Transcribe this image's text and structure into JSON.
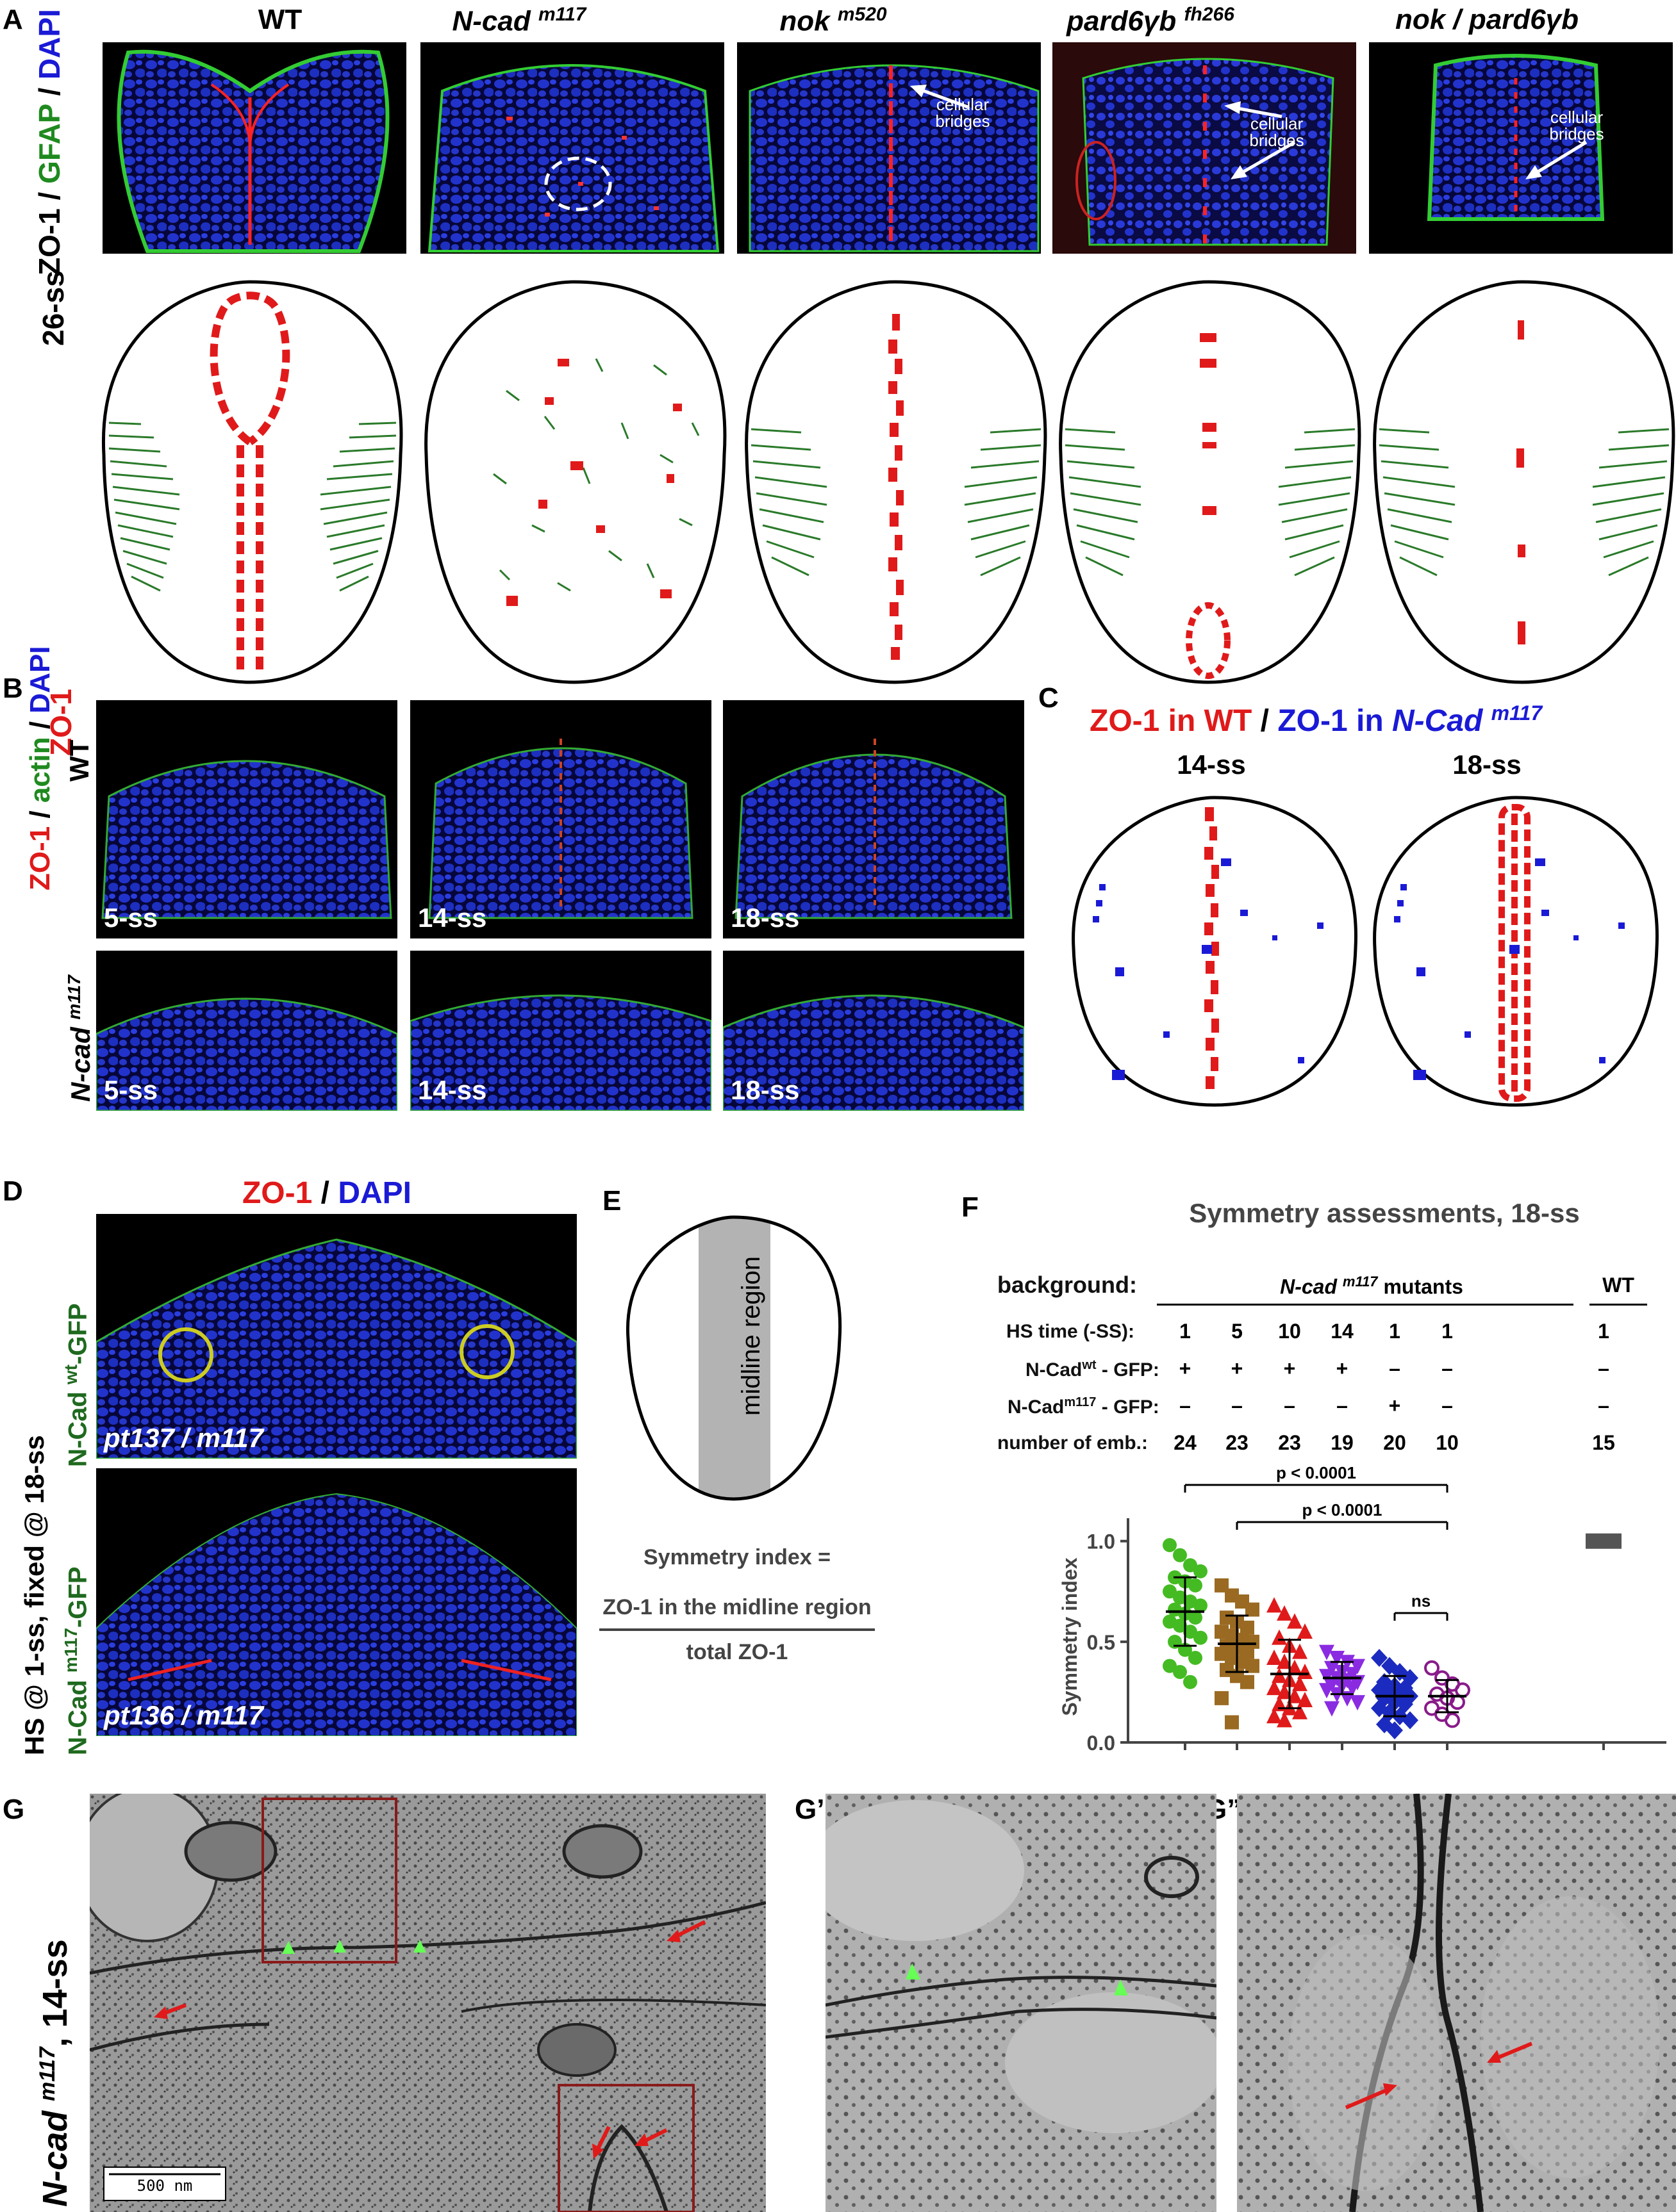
{
  "panels": {
    "A": "A",
    "B": "B",
    "C": "C",
    "D": "D",
    "E": "E",
    "F": "F",
    "G": "G",
    "G1": "G’",
    "G2": "G”"
  },
  "panel_a": {
    "columns": [
      "WT",
      "N-cad m117",
      "nok m520",
      "pard6γb fh266",
      "nok / pard6γb"
    ],
    "col_base": [
      "WT",
      "N-cad",
      "nok",
      "pard6γb",
      "nok / pard6γb"
    ],
    "col_sup": [
      "",
      "m117",
      "m520",
      "fh266",
      ""
    ],
    "side_stage": "26-ss",
    "side_zo1": "ZO-1",
    "side_gfap": "GFAP",
    "side_dapi": "DAPI",
    "sep": " / ",
    "annotation": "cellular bridges"
  },
  "panel_b": {
    "side_zo1": "ZO-1",
    "side_actin": "actin",
    "side_dapi": "DAPI",
    "row_wt": "WT",
    "row_ncad": "N-cad",
    "row_ncad_sup": "m117",
    "stages": [
      "5-ss",
      "14-ss",
      "18-ss"
    ]
  },
  "panel_c": {
    "title_wt": "ZO-1 in WT",
    "title_ncad": "ZO-1 in",
    "title_ncad_gene": "N-Cad",
    "title_ncad_sup": "m117",
    "stages": [
      "14-ss",
      "18-ss"
    ]
  },
  "panel_d": {
    "title_zo1": "ZO-1",
    "title_dapi": "DAPI",
    "side": "HS @ 1-ss, fixed @ 18-ss",
    "construct_wt": "N-Cad",
    "construct_wt_sup": "wt",
    "construct_mut": "N-Cad",
    "construct_mut_sup": "m117",
    "gfp": "-GFP",
    "geno_top": "pt137 / m117",
    "geno_bottom": "pt136 / m117"
  },
  "panel_e": {
    "region": "midline region",
    "formula_title": "Symmetry index =",
    "numerator": "ZO-1 in the midline region",
    "denominator": "total ZO-1"
  },
  "panel_f": {
    "title": "Symmetry assessments, 18-ss",
    "rows": {
      "background": "background:",
      "hs_time": "HS time (-SS):",
      "ncad_wt": "N-Cad",
      "ncad_wt_sup": "wt",
      "ncad_m117": "N-Cad",
      "ncad_m117_sup": "m117",
      "gfp": " - GFP:",
      "emb": "number of emb.:"
    },
    "background_mutants": "N-cad",
    "background_mutants_sup": "m117",
    "background_mutants_tail": "mutants",
    "background_wt": "WT",
    "hs": [
      "1",
      "5",
      "10",
      "14",
      "1",
      "1",
      "1"
    ],
    "wt_gfp": [
      "+",
      "+",
      "+",
      "+",
      "–",
      "–",
      "–"
    ],
    "mut_gfp": [
      "–",
      "–",
      "–",
      "–",
      "+",
      "–",
      "–"
    ],
    "emb": [
      "24",
      "23",
      "23",
      "19",
      "20",
      "10",
      "15"
    ],
    "sig1": "p < 0.0001",
    "sig2": "p < 0.0001",
    "sig3": "ns"
  },
  "chart_data": {
    "type": "scatter",
    "ylabel": "Symmetry index",
    "ylim": [
      0,
      1.05
    ],
    "yticks": [
      "0.0",
      "0.5",
      "1.0"
    ],
    "groups": [
      {
        "n": 24,
        "mean": 0.65,
        "sd": 0.17,
        "color": "#44bb22",
        "marker": "circle",
        "values": [
          0.98,
          0.93,
          0.88,
          0.85,
          0.82,
          0.8,
          0.78,
          0.75,
          0.72,
          0.7,
          0.68,
          0.66,
          0.64,
          0.62,
          0.6,
          0.58,
          0.55,
          0.52,
          0.5,
          0.46,
          0.42,
          0.38,
          0.35,
          0.3
        ]
      },
      {
        "n": 23,
        "mean": 0.49,
        "sd": 0.14,
        "color": "#9a6a22",
        "marker": "square",
        "values": [
          0.78,
          0.73,
          0.7,
          0.66,
          0.62,
          0.6,
          0.57,
          0.55,
          0.53,
          0.51,
          0.5,
          0.48,
          0.47,
          0.45,
          0.44,
          0.42,
          0.4,
          0.38,
          0.36,
          0.33,
          0.3,
          0.22,
          0.1
        ]
      },
      {
        "n": 23,
        "mean": 0.34,
        "sd": 0.17,
        "color": "#e01a1a",
        "marker": "triangle",
        "values": [
          0.68,
          0.64,
          0.6,
          0.55,
          0.52,
          0.48,
          0.45,
          0.42,
          0.4,
          0.37,
          0.35,
          0.33,
          0.31,
          0.29,
          0.27,
          0.25,
          0.23,
          0.21,
          0.19,
          0.17,
          0.15,
          0.13,
          0.11
        ]
      },
      {
        "n": 19,
        "mean": 0.32,
        "sd": 0.08,
        "color": "#8a2be2",
        "marker": "triangle-down",
        "values": [
          0.45,
          0.42,
          0.4,
          0.38,
          0.37,
          0.35,
          0.34,
          0.33,
          0.32,
          0.31,
          0.3,
          0.29,
          0.28,
          0.27,
          0.26,
          0.24,
          0.22,
          0.2,
          0.17
        ]
      },
      {
        "n": 20,
        "mean": 0.23,
        "sd": 0.1,
        "color": "#1c2bbf",
        "marker": "diamond",
        "values": [
          0.42,
          0.38,
          0.35,
          0.32,
          0.3,
          0.28,
          0.27,
          0.26,
          0.25,
          0.24,
          0.23,
          0.22,
          0.2,
          0.19,
          0.17,
          0.15,
          0.13,
          0.11,
          0.09,
          0.06
        ]
      },
      {
        "n": 10,
        "mean": 0.23,
        "sd": 0.08,
        "color": "#8a1a8a",
        "marker": "open-circle",
        "values": [
          0.37,
          0.32,
          0.29,
          0.26,
          0.24,
          0.22,
          0.2,
          0.17,
          0.14,
          0.11
        ]
      },
      {
        "n": 15,
        "mean": 1.0,
        "sd": 0.0,
        "color": "#555555",
        "marker": "bar",
        "values": [
          1.0
        ]
      }
    ]
  },
  "panel_g": {
    "side_gene": "N-cad",
    "side_sup": "m117",
    "side_stage": ", 14-ss",
    "scale_bar": "500 nm"
  }
}
